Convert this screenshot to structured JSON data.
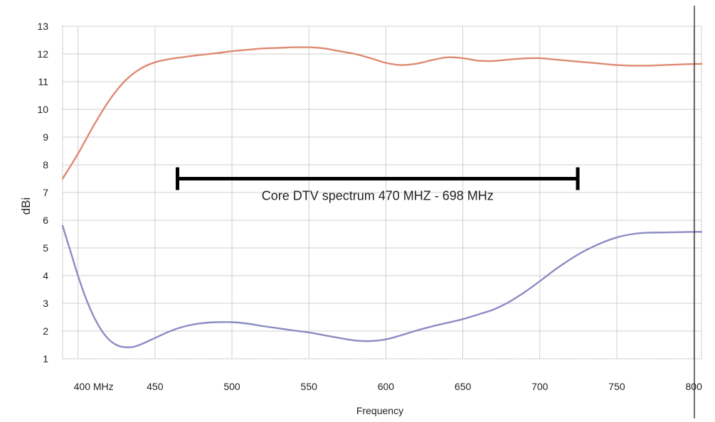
{
  "chart_data": {
    "type": "line",
    "title": "",
    "xlabel": "Frequency",
    "ylabel": "dBi",
    "xlim": [
      390,
      805
    ],
    "ylim": [
      1,
      13
    ],
    "grid": true,
    "x_ticks": [
      {
        "value": 400,
        "label": "400 MHz"
      },
      {
        "value": 450,
        "label": "450"
      },
      {
        "value": 500,
        "label": "500"
      },
      {
        "value": 550,
        "label": "550"
      },
      {
        "value": 600,
        "label": "600"
      },
      {
        "value": 650,
        "label": "650"
      },
      {
        "value": 700,
        "label": "700"
      },
      {
        "value": 750,
        "label": "750"
      },
      {
        "value": 800,
        "label": "800"
      }
    ],
    "y_ticks": [
      1,
      2,
      3,
      4,
      5,
      6,
      7,
      8,
      9,
      10,
      11,
      12,
      13
    ],
    "series": [
      {
        "color": "#de8a72",
        "points": [
          [
            390,
            7.5
          ],
          [
            400,
            8.4
          ],
          [
            410,
            9.4
          ],
          [
            420,
            10.3
          ],
          [
            430,
            11.0
          ],
          [
            440,
            11.45
          ],
          [
            450,
            11.7
          ],
          [
            460,
            11.82
          ],
          [
            470,
            11.9
          ],
          [
            480,
            11.97
          ],
          [
            490,
            12.03
          ],
          [
            500,
            12.1
          ],
          [
            510,
            12.15
          ],
          [
            520,
            12.2
          ],
          [
            530,
            12.22
          ],
          [
            540,
            12.24
          ],
          [
            550,
            12.24
          ],
          [
            560,
            12.2
          ],
          [
            570,
            12.1
          ],
          [
            580,
            12.0
          ],
          [
            590,
            11.85
          ],
          [
            600,
            11.68
          ],
          [
            610,
            11.6
          ],
          [
            620,
            11.65
          ],
          [
            630,
            11.78
          ],
          [
            640,
            11.88
          ],
          [
            650,
            11.85
          ],
          [
            660,
            11.76
          ],
          [
            670,
            11.75
          ],
          [
            680,
            11.8
          ],
          [
            690,
            11.84
          ],
          [
            700,
            11.85
          ],
          [
            710,
            11.8
          ],
          [
            720,
            11.75
          ],
          [
            730,
            11.7
          ],
          [
            740,
            11.65
          ],
          [
            750,
            11.6
          ],
          [
            760,
            11.58
          ],
          [
            770,
            11.58
          ],
          [
            780,
            11.6
          ],
          [
            790,
            11.62
          ],
          [
            800,
            11.64
          ],
          [
            805,
            11.64
          ]
        ]
      },
      {
        "color": "#8c8cc4",
        "points": [
          [
            390,
            5.8
          ],
          [
            395,
            4.9
          ],
          [
            400,
            4.0
          ],
          [
            405,
            3.2
          ],
          [
            410,
            2.55
          ],
          [
            415,
            2.05
          ],
          [
            420,
            1.7
          ],
          [
            425,
            1.5
          ],
          [
            430,
            1.42
          ],
          [
            435,
            1.42
          ],
          [
            440,
            1.5
          ],
          [
            450,
            1.75
          ],
          [
            460,
            2.0
          ],
          [
            470,
            2.18
          ],
          [
            480,
            2.28
          ],
          [
            490,
            2.32
          ],
          [
            500,
            2.32
          ],
          [
            510,
            2.27
          ],
          [
            520,
            2.18
          ],
          [
            530,
            2.1
          ],
          [
            540,
            2.02
          ],
          [
            550,
            1.95
          ],
          [
            560,
            1.85
          ],
          [
            570,
            1.75
          ],
          [
            580,
            1.66
          ],
          [
            590,
            1.64
          ],
          [
            600,
            1.7
          ],
          [
            610,
            1.85
          ],
          [
            620,
            2.02
          ],
          [
            630,
            2.17
          ],
          [
            640,
            2.3
          ],
          [
            650,
            2.43
          ],
          [
            660,
            2.6
          ],
          [
            670,
            2.78
          ],
          [
            680,
            3.05
          ],
          [
            690,
            3.4
          ],
          [
            700,
            3.8
          ],
          [
            710,
            4.22
          ],
          [
            720,
            4.6
          ],
          [
            730,
            4.92
          ],
          [
            740,
            5.18
          ],
          [
            750,
            5.38
          ],
          [
            760,
            5.5
          ],
          [
            770,
            5.55
          ],
          [
            780,
            5.56
          ],
          [
            790,
            5.57
          ],
          [
            800,
            5.58
          ],
          [
            805,
            5.58
          ]
        ]
      }
    ],
    "annotation": {
      "label": "Core DTV spectrum 470 MHZ - 698 MHz",
      "x_start": 460,
      "x_end": 720,
      "y": 7.5
    }
  }
}
